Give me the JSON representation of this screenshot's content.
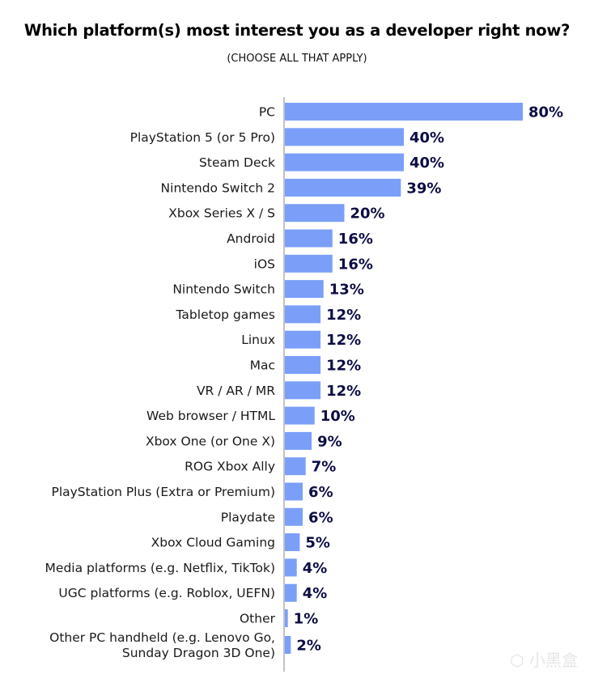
{
  "chart_data": {
    "type": "bar",
    "orientation": "horizontal",
    "title": "Which platform(s) most interest you as a developer right now?",
    "subtitle": "(CHOOSE ALL THAT APPLY)",
    "categories": [
      "PC",
      "PlayStation 5 (or 5 Pro)",
      "Steam Deck",
      "Nintendo Switch 2",
      "Xbox Series X / S",
      "Android",
      "iOS",
      "Nintendo Switch",
      "Tabletop games",
      "Linux",
      "Mac",
      "VR / AR / MR",
      "Web browser / HTML",
      "Xbox One (or One X)",
      "ROG Xbox Ally",
      "PlayStation Plus (Extra or Premium)",
      "Playdate",
      "Xbox Cloud Gaming",
      "Media platforms (e.g. Netflix, TikTok)",
      "UGC platforms (e.g. Roblox, UEFN)",
      "Other",
      "Other PC handheld (e.g. Lenovo Go,\nSunday Dragon 3D One)"
    ],
    "values": [
      80,
      40,
      40,
      39,
      20,
      16,
      16,
      13,
      12,
      12,
      12,
      12,
      10,
      9,
      7,
      6,
      6,
      5,
      4,
      4,
      1,
      2
    ],
    "value_labels": [
      "80%",
      "40%",
      "40%",
      "39%",
      "20%",
      "16%",
      "16%",
      "13%",
      "12%",
      "12%",
      "12%",
      "12%",
      "10%",
      "9%",
      "7%",
      "6%",
      "6%",
      "5%",
      "4%",
      "4%",
      "1%",
      "2%"
    ],
    "unit": "%",
    "xlim": [
      0,
      80
    ],
    "grid": false,
    "colors": {
      "bar": "#7b9ff8",
      "value_label": "#0d0d45",
      "axis": "#999999"
    }
  },
  "watermark": "小黑盒"
}
